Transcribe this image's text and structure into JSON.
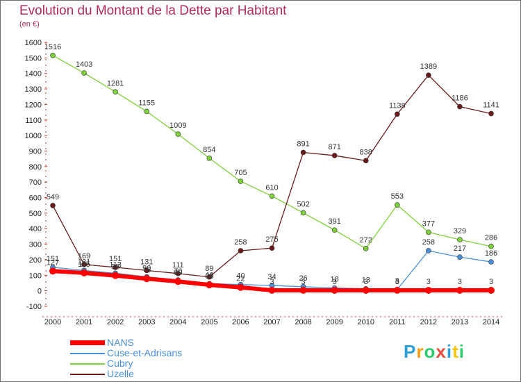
{
  "chart_data": {
    "type": "line",
    "title": "Evolution du Montant de la Dette par Habitant",
    "subtitle": "(en €)",
    "x": [
      2000,
      2001,
      2002,
      2003,
      2004,
      2005,
      2006,
      2007,
      2008,
      2009,
      2010,
      2011,
      2012,
      2013,
      2014
    ],
    "yticks": [
      -100,
      0,
      100,
      200,
      300,
      400,
      500,
      600,
      700,
      800,
      900,
      1000,
      1100,
      1200,
      1300,
      1400,
      1500,
      1600
    ],
    "ylim": [
      -100,
      1600
    ],
    "grid": false,
    "legend_position": "bottom-left",
    "series": [
      {
        "name": "NANS",
        "color": "#ff0000",
        "values": [
          127,
          115,
          98,
          78,
          60,
          38,
          22,
          3,
          3,
          3,
          3,
          3,
          3,
          3,
          3
        ]
      },
      {
        "name": "Cuse-et-Adrisans",
        "color": "#4a90d9",
        "values": [
          151,
          131,
          113,
          90,
          70,
          46,
          40,
          34,
          26,
          18,
          13,
          8,
          258,
          217,
          186
        ]
      },
      {
        "name": "Cubry",
        "color": "#7dd13a",
        "values": [
          1516,
          1403,
          1281,
          1155,
          1009,
          854,
          705,
          610,
          502,
          391,
          272,
          553,
          377,
          329,
          286
        ]
      },
      {
        "name": "Uzelle",
        "color": "#6a1a1a",
        "values": [
          549,
          169,
          151,
          131,
          111,
          89,
          258,
          275,
          891,
          871,
          838,
          1138,
          1389,
          1186,
          1141
        ]
      }
    ]
  },
  "logo": {
    "letters": [
      "P",
      "r",
      "o",
      "x",
      "i",
      "t",
      "i"
    ],
    "colors": [
      "#2a9fd6",
      "#f39c12",
      "#2ecc71",
      "#e74c3c",
      "#2a9fd6",
      "#f1c40f",
      "#2ecc71"
    ]
  }
}
